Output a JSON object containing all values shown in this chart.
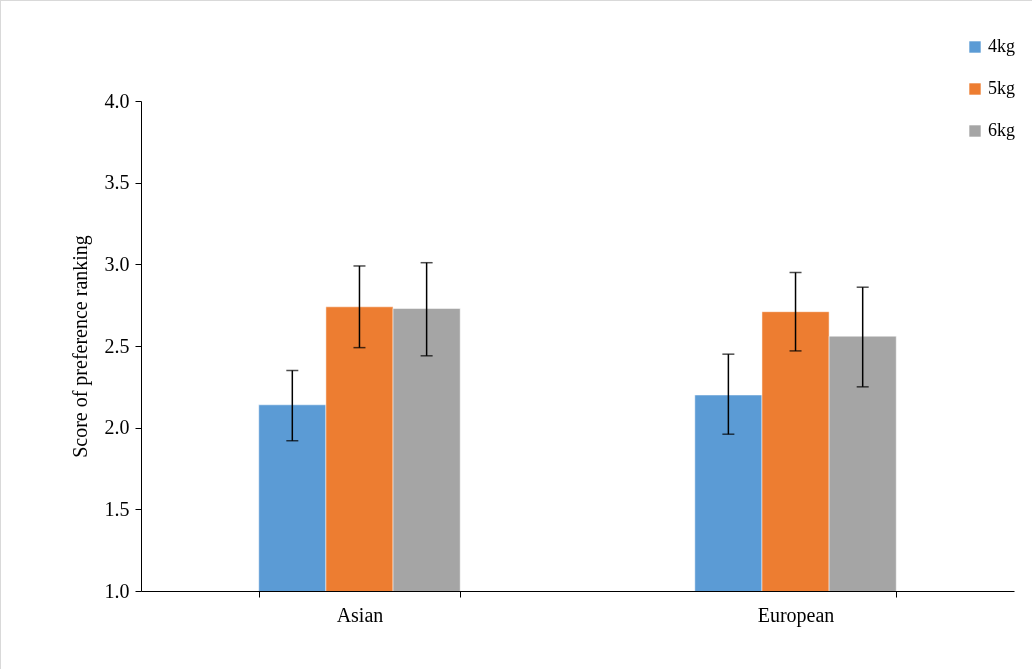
{
  "chart_data": {
    "type": "bar",
    "ylabel": "Score of preference ranking",
    "categories": [
      "Asian",
      "European"
    ],
    "series": [
      {
        "name": "4kg",
        "color": "#5b9bd5",
        "values": [
          2.14,
          2.2
        ],
        "errors": [
          [
            1.92,
            2.35
          ],
          [
            1.96,
            2.45
          ]
        ]
      },
      {
        "name": "5kg",
        "color": "#ed7d31",
        "values": [
          2.74,
          2.71
        ],
        "errors": [
          [
            2.49,
            2.99
          ],
          [
            2.47,
            2.95
          ]
        ]
      },
      {
        "name": "6kg",
        "color": "#a5a5a5",
        "values": [
          2.73,
          2.56
        ],
        "errors": [
          [
            2.44,
            3.01
          ],
          [
            2.25,
            2.86
          ]
        ]
      }
    ],
    "ylim": [
      1.0,
      4.0
    ],
    "yticks": [
      {
        "value": 1,
        "label": "1.0"
      },
      {
        "value": 1.5,
        "label": "1.5"
      },
      {
        "value": 2,
        "label": "2.0"
      },
      {
        "value": 2.5,
        "label": "2.5"
      },
      {
        "value": 3,
        "label": "3.0"
      },
      {
        "value": 3.5,
        "label": "3.5"
      },
      {
        "value": 4,
        "label": "4.0"
      }
    ],
    "grid": false,
    "legend": "top right"
  }
}
